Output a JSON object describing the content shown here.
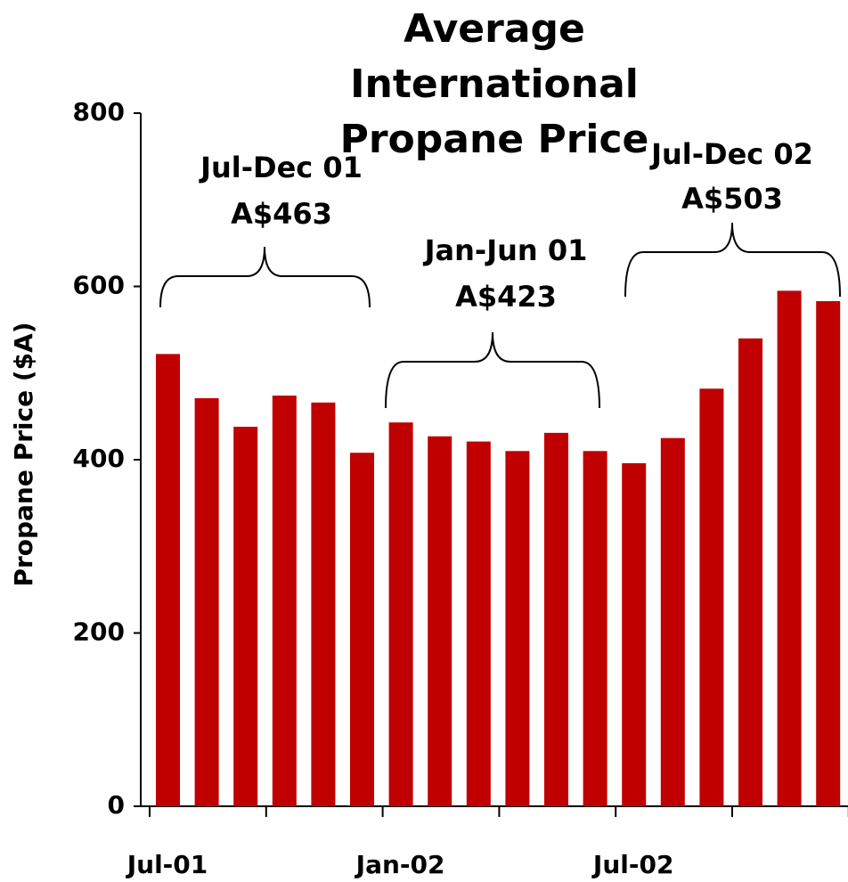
{
  "chart_data": {
    "type": "bar",
    "title": "Average International Propane Price",
    "y_label": "Propane Price ($A)",
    "categories": [
      "Jul-01",
      null,
      null,
      null,
      null,
      null,
      "Jan-02",
      null,
      null,
      null,
      null,
      null,
      "Jul-02",
      null,
      null,
      null,
      null,
      null
    ],
    "values": [
      522,
      471,
      438,
      474,
      466,
      408,
      443,
      427,
      421,
      410,
      431,
      410,
      396,
      425,
      482,
      540,
      595,
      583
    ],
    "color": "#c00000",
    "ylim": [
      0,
      800
    ],
    "yticks": [
      0,
      200,
      400,
      600,
      800
    ],
    "grid": false,
    "annotations": [
      {
        "period": "Jul-Dec 01",
        "average": "A$463"
      },
      {
        "period": "Jan-Jun 01",
        "average": "A$423"
      },
      {
        "period": "Jul-Dec 02",
        "average": "A$503"
      }
    ]
  }
}
